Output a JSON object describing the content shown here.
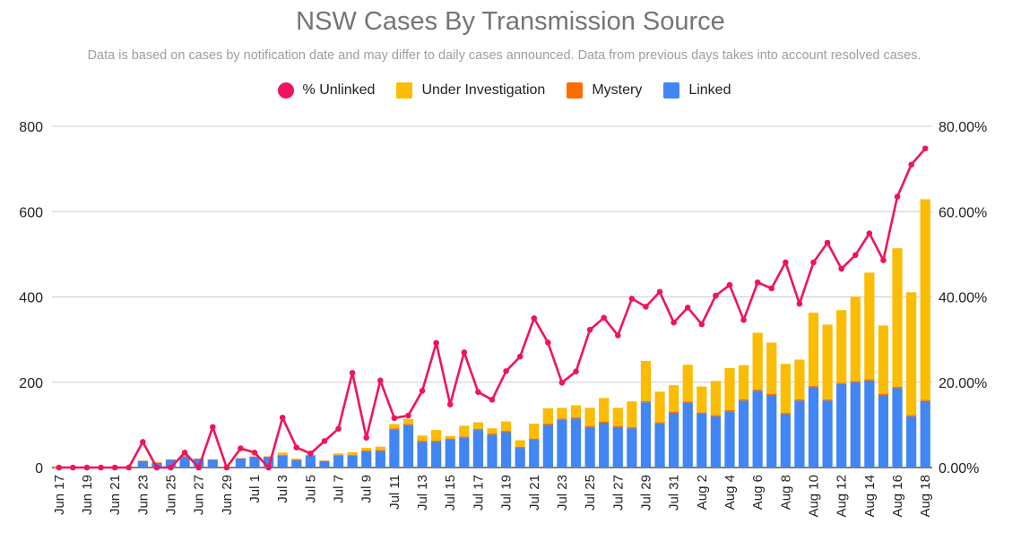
{
  "title": "NSW Cases By Transmission Source",
  "subtitle": "Data is based on cases by notification date and may differ to daily cases announced. Data from previous days takes into account resolved cases.",
  "legend": [
    {
      "label": "% Unlinked",
      "color": "#f0145a",
      "shape": "circle"
    },
    {
      "label": "Under Investigation",
      "color": "#fbbc04",
      "shape": "square"
    },
    {
      "label": "Mystery",
      "color": "#ff6d01",
      "shape": "square"
    },
    {
      "label": "Linked",
      "color": "#4285f4",
      "shape": "square"
    }
  ],
  "chart_data": {
    "type": "bar",
    "stacked": true,
    "x": [
      "Jun 17",
      "Jun 18",
      "Jun 19",
      "Jun 20",
      "Jun 21",
      "Jun 22",
      "Jun 23",
      "Jun 24",
      "Jun 25",
      "Jun 26",
      "Jun 27",
      "Jun 28",
      "Jun 29",
      "Jun 30",
      "Jul 1",
      "Jul 2",
      "Jul 3",
      "Jul 4",
      "Jul 5",
      "Jul 6",
      "Jul 7",
      "Jul 8",
      "Jul 9",
      "Jul 10",
      "Jul 11",
      "Jul 12",
      "Jul 13",
      "Jul 14",
      "Jul 15",
      "Jul 16",
      "Jul 17",
      "Jul 18",
      "Jul 19",
      "Jul 20",
      "Jul 21",
      "Jul 22",
      "Jul 23",
      "Jul 24",
      "Jul 25",
      "Jul 26",
      "Jul 27",
      "Jul 28",
      "Jul 29",
      "Jul 30",
      "Jul 31",
      "Aug 1",
      "Aug 2",
      "Aug 3",
      "Aug 4",
      "Aug 5",
      "Aug 6",
      "Aug 7",
      "Aug 8",
      "Aug 9",
      "Aug 10",
      "Aug 11",
      "Aug 12",
      "Aug 13",
      "Aug 14",
      "Aug 15",
      "Aug 16",
      "Aug 17",
      "Aug 18"
    ],
    "x_tick_labels": [
      "Jun 17",
      "Jun 19",
      "Jun 21",
      "Jun 23",
      "Jun 25",
      "Jun 27",
      "Jun 29",
      "Jul 1",
      "Jul 3",
      "Jul 5",
      "Jul 7",
      "Jul 9",
      "Jul 11",
      "Jul 13",
      "Jul 15",
      "Jul 17",
      "Jul 19",
      "Jul 21",
      "Jul 23",
      "Jul 25",
      "Jul 27",
      "Jul 29",
      "Jul 31",
      "Aug 2",
      "Aug 4",
      "Aug 6",
      "Aug 8",
      "Aug 10",
      "Aug 12",
      "Aug 14",
      "Aug 16",
      "Aug 18"
    ],
    "series": [
      {
        "name": "Linked",
        "color": "#4285f4",
        "axis": "left",
        "values": [
          0,
          0,
          0,
          0,
          0,
          0,
          15,
          11,
          18,
          26,
          20,
          18,
          0,
          21,
          25,
          25,
          28,
          17,
          28,
          15,
          28,
          28,
          38,
          39,
          90,
          100,
          60,
          60,
          65,
          70,
          88,
          77,
          83,
          46,
          65,
          100,
          112,
          115,
          95,
          105,
          95,
          92,
          153,
          103,
          128,
          152,
          126,
          120,
          132,
          157,
          180,
          170,
          125,
          157,
          188,
          157,
          196,
          200,
          204,
          170,
          186,
          120,
          156
        ]
      },
      {
        "name": "Mystery",
        "color": "#ff6d01",
        "axis": "left",
        "values": [
          0,
          0,
          0,
          0,
          0,
          0,
          1,
          1,
          1,
          1,
          1,
          1,
          0,
          1,
          1,
          1,
          2,
          1,
          1,
          1,
          2,
          2,
          2,
          2,
          2,
          2,
          3,
          3,
          3,
          3,
          3,
          3,
          3,
          3,
          3,
          3,
          3,
          3,
          3,
          3,
          3,
          3,
          3,
          3,
          3,
          3,
          3,
          3,
          3,
          3,
          3,
          3,
          3,
          3,
          3,
          3,
          3,
          3,
          3,
          3,
          3,
          3,
          3
        ]
      },
      {
        "name": "Under Investigation",
        "color": "#fbbc04",
        "axis": "left",
        "values": [
          3,
          0,
          0,
          1,
          1,
          0,
          0,
          0,
          0,
          0,
          0,
          0,
          0,
          0,
          0,
          0,
          5,
          3,
          1,
          0,
          3,
          6,
          6,
          8,
          10,
          12,
          12,
          25,
          6,
          25,
          15,
          12,
          22,
          15,
          35,
          36,
          25,
          28,
          42,
          55,
          42,
          60,
          94,
          72,
          62,
          86,
          61,
          80,
          98,
          80,
          133,
          120,
          115,
          93,
          172,
          175,
          170,
          198,
          250,
          160,
          325,
          288,
          470
        ]
      },
      {
        "name": "% Unlinked",
        "color": "#f0145a",
        "axis": "right",
        "unit": "%",
        "values": [
          0.0,
          0.0,
          0.0,
          0.0,
          0.0,
          0.0,
          6.0,
          0.0,
          0.0,
          3.5,
          0.0,
          9.5,
          0.0,
          4.5,
          3.5,
          0.0,
          11.7,
          4.7,
          3.3,
          6.2,
          9.1,
          22.2,
          7.0,
          20.4,
          11.6,
          12.2,
          18.0,
          29.2,
          14.8,
          27.0,
          17.7,
          15.9,
          22.6,
          26.0,
          35.0,
          29.3,
          19.9,
          22.5,
          32.3,
          35.1,
          31.0,
          39.6,
          37.7,
          41.2,
          34.0,
          37.5,
          33.6,
          40.3,
          42.8,
          34.6,
          43.4,
          42.0,
          48.1,
          38.4,
          48.1,
          52.7,
          46.6,
          49.8,
          54.9,
          48.6,
          63.5,
          71.0,
          74.8
        ]
      }
    ],
    "left_axis": {
      "ylim": [
        0,
        800
      ],
      "ticks": [
        "0",
        "200",
        "400",
        "600",
        "800"
      ]
    },
    "right_axis": {
      "ylim": [
        0,
        80
      ],
      "ticks": [
        "0.00%",
        "20.00%",
        "40.00%",
        "60.00%",
        "80.00%"
      ]
    },
    "grid": true,
    "legend_position": "top"
  }
}
